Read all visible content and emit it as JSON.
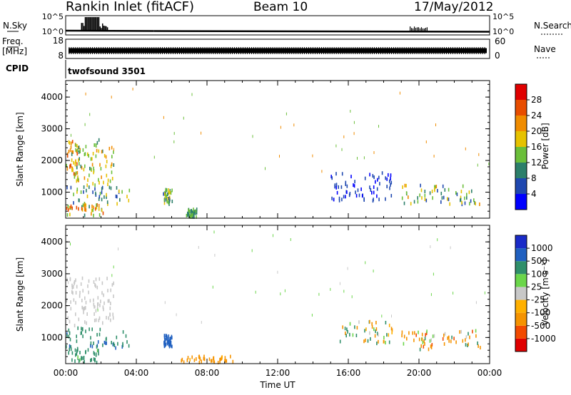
{
  "header": {
    "station": "Rankin Inlet (fitACF)",
    "beam": "Beam 10",
    "date": "17/May/2012"
  },
  "summary_panels": {
    "nsky": {
      "label": "N.Sky",
      "ticks": [
        "10^5",
        "10^0"
      ]
    },
    "nsearch": {
      "label": "N.Search",
      "ticks": [
        "10^5",
        "10^0"
      ]
    },
    "freq": {
      "label_line1": "Freq.",
      "label_line2": "[MHz]",
      "ticks": [
        "18",
        "8"
      ]
    },
    "nave": {
      "label": "Nave",
      "ticks": [
        "60",
        "0"
      ]
    },
    "cpid": {
      "label": "CPID",
      "value": "twofsound 3501"
    }
  },
  "x_axis": {
    "label": "Time UT",
    "ticks": [
      "00:00",
      "04:00",
      "08:00",
      "12:00",
      "16:00",
      "20:00",
      "00:00"
    ]
  },
  "colors": {
    "power": [
      "#0000ff",
      "#1f48b0",
      "#2c7f6a",
      "#6bbf3a",
      "#e6c200",
      "#f08c00",
      "#e84d00",
      "#e00000"
    ],
    "velocity": [
      "#e00000",
      "#f24a00",
      "#f59300",
      "#ffb000",
      "#c8c8c8",
      "#6bd64a",
      "#2f8f6a",
      "#2060c0",
      "#1a2bc8"
    ]
  },
  "chart_data": [
    {
      "type": "heatmap",
      "name": "power-panel",
      "ylabel": "Slant Range [km]",
      "yticks": [
        1000,
        2000,
        3000,
        4000
      ],
      "ylim": [
        180,
        4520
      ],
      "xlim_hours": [
        0,
        24
      ],
      "colorbar": {
        "label": "Power [dB]",
        "ticks": [
          4,
          8,
          12,
          16,
          20,
          24,
          28
        ],
        "range": [
          0,
          32
        ]
      },
      "regions": [
        {
          "t": [
            0.0,
            0.7
          ],
          "r": [
            1350,
            2700
          ],
          "v": [
            14,
            26
          ]
        },
        {
          "t": [
            0.3,
            2.7
          ],
          "r": [
            1200,
            2650
          ],
          "v": [
            10,
            22
          ]
        },
        {
          "t": [
            0.0,
            3.6
          ],
          "r": [
            600,
            1150
          ],
          "v": [
            4,
            20
          ]
        },
        {
          "t": [
            0.0,
            2.2
          ],
          "r": [
            200,
            600
          ],
          "v": [
            10,
            28
          ]
        },
        {
          "t": [
            5.5,
            6.0
          ],
          "r": [
            600,
            1100
          ],
          "v": [
            6,
            18
          ]
        },
        {
          "t": [
            6.8,
            7.4
          ],
          "r": [
            200,
            450
          ],
          "v": [
            8,
            16
          ]
        },
        {
          "t": [
            15.0,
            18.5
          ],
          "r": [
            700,
            1600
          ],
          "v": [
            2,
            8
          ]
        },
        {
          "t": [
            19.0,
            23.5
          ],
          "r": [
            600,
            1200
          ],
          "v": [
            4,
            22
          ]
        }
      ]
    },
    {
      "type": "heatmap",
      "name": "velocity-panel",
      "ylabel": "Slant Range [km]",
      "yticks": [
        1000,
        2000,
        3000,
        4000
      ],
      "ylim": [
        180,
        4520
      ],
      "xlim_hours": [
        0,
        24
      ],
      "colorbar": {
        "label": "Velocity [m s⁻¹]",
        "ticks": [
          1000,
          500,
          100,
          25,
          -25,
          -100,
          -500,
          -1000
        ],
        "range": [
          -1250,
          1250
        ]
      },
      "regions": [
        {
          "t": [
            0.0,
            2.7
          ],
          "r": [
            1350,
            2850
          ],
          "v": [
            -20,
            20
          ]
        },
        {
          "t": [
            0.0,
            3.6
          ],
          "r": [
            650,
            1300
          ],
          "v": [
            100,
            600
          ]
        },
        {
          "t": [
            0.0,
            2.0
          ],
          "r": [
            200,
            650
          ],
          "v": [
            50,
            400
          ]
        },
        {
          "t": [
            5.5,
            6.0
          ],
          "r": [
            700,
            1050
          ],
          "v": [
            500,
            1000
          ]
        },
        {
          "t": [
            6.5,
            9.5
          ],
          "r": [
            200,
            400
          ],
          "v": [
            -400,
            -50
          ]
        },
        {
          "t": [
            15.5,
            18.5
          ],
          "r": [
            800,
            1500
          ],
          "v": [
            -300,
            300
          ]
        },
        {
          "t": [
            19.0,
            23.5
          ],
          "r": [
            600,
            1200
          ],
          "v": [
            -600,
            200
          ]
        }
      ]
    }
  ]
}
